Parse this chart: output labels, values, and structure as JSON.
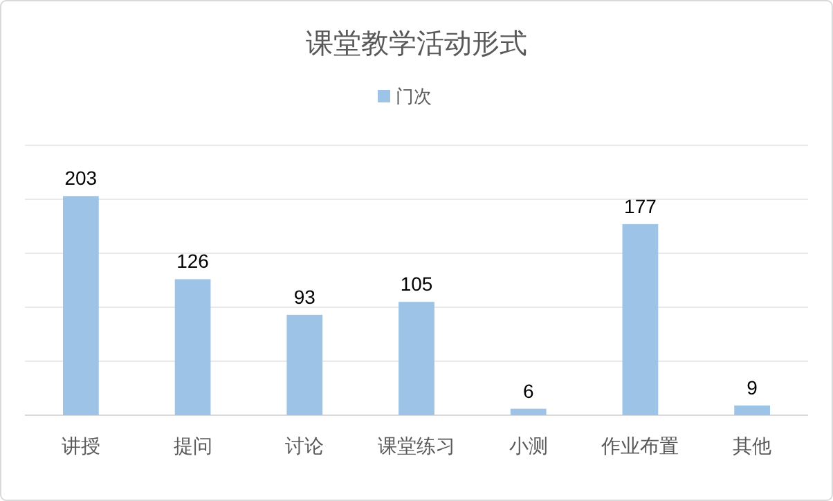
{
  "chart_data": {
    "type": "bar",
    "title": "课堂教学活动形式",
    "categories": [
      "讲授",
      "提问",
      "讨论",
      "课堂练习",
      "小测",
      "作业布置",
      "其他"
    ],
    "series": [
      {
        "name": "门次",
        "color": "#9dc3e6",
        "values": [
          203,
          126,
          93,
          105,
          6,
          177,
          9
        ]
      }
    ],
    "ylim": [
      0,
      250
    ],
    "yticks": [
      {
        "value": 0,
        "label": null
      },
      {
        "value": 50,
        "label": null
      },
      {
        "value": 100,
        "label": null
      },
      {
        "value": 150,
        "label": null
      },
      {
        "value": 200,
        "label": null
      },
      {
        "value": 250,
        "label": null
      }
    ],
    "grid": "y",
    "legend": "top",
    "data_labels": true,
    "tick_labels": "x"
  }
}
